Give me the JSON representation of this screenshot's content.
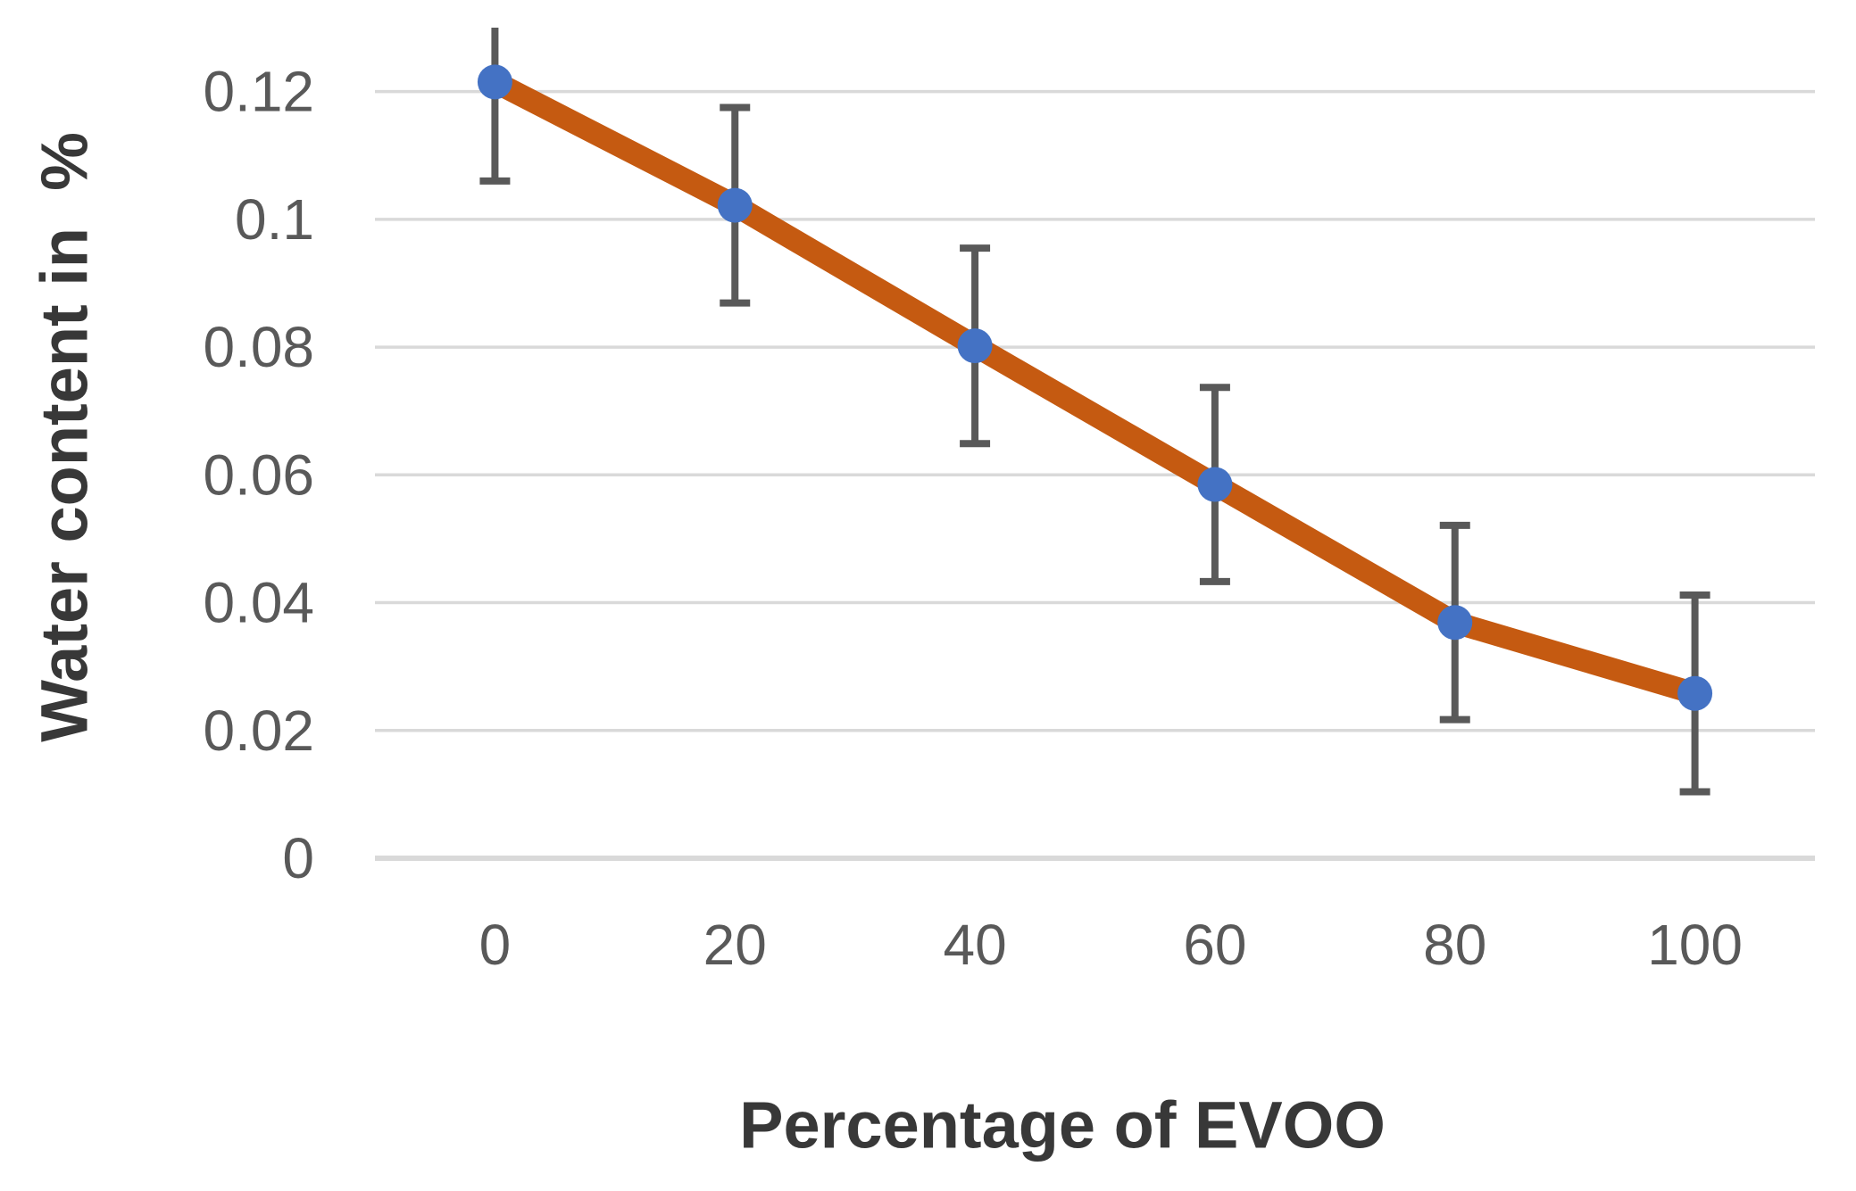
{
  "chart_data": {
    "type": "line",
    "title": "",
    "xlabel": "Percentage of EVOO",
    "ylabel": "Water content in  %",
    "x_categories": [
      "0",
      "20",
      "40",
      "60",
      "80",
      "100"
    ],
    "series": [
      {
        "name": "Water content in % vs Percentage of EVOO",
        "values": [
          0.1215,
          0.1022,
          0.0802,
          0.0585,
          0.0369,
          0.0258
        ],
        "error_bars": [
          0.0155,
          0.0153,
          0.0153,
          0.0152,
          0.0152,
          0.0154
        ]
      }
    ],
    "ylim": [
      0,
      0.13
    ],
    "ytick_values": [
      0,
      0.02,
      0.04,
      0.06,
      0.08,
      0.1,
      0.12
    ],
    "ytick_labels": [
      "0",
      "0.02",
      "0.04",
      "0.06",
      "0.08",
      "0.1",
      "0.12"
    ],
    "grid": true,
    "legend": "none",
    "colors": {
      "line": "#C55A11",
      "marker": "#4472C4",
      "error_bar": "#595959",
      "gridline": "#D9D9D9",
      "axis_line": "#D9D9D9",
      "tick_text": "#595959",
      "axis_title_text": "#383838",
      "background": "#FFFFFF"
    }
  }
}
